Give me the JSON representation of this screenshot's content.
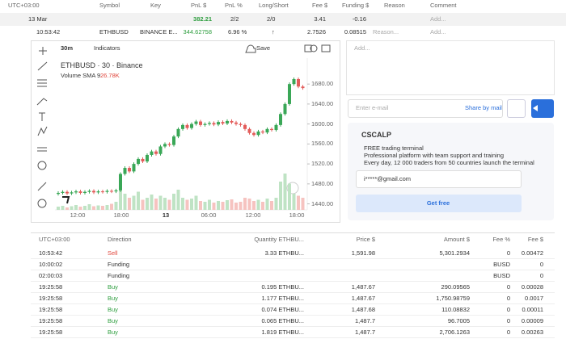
{
  "top_table": {
    "columns": [
      "UTC+03:00",
      "Symbol",
      "Key",
      "PnL $",
      "PnL %",
      "Long/Short",
      "Fee $",
      "Funding $",
      "Reason",
      "Comment"
    ],
    "summary": [
      "13 Mar",
      "382.21",
      "2/2",
      "2/0",
      "3.41",
      "-0.16",
      "Add..."
    ],
    "trade": [
      "10:53:42",
      "ETHBUSD",
      "BINANCE E...",
      "344.62758",
      "6.96 %",
      "↑",
      "2.7526",
      "0.08515",
      "Reason...",
      "Add..."
    ]
  },
  "chart": {
    "interval": "30m",
    "indicators": "Indicators",
    "save": "Save",
    "legend": "ETHBUSD · 30 · Binance",
    "volume_label": "Volume SMA 9",
    "volume_value": "26.78K",
    "ylim": [
      1428,
      1732
    ],
    "yticks": [
      {
        "value": 1680,
        "label": "1680.00"
      },
      {
        "value": 1640,
        "label": "1640.00"
      },
      {
        "value": 1600,
        "label": "1600.00"
      },
      {
        "value": 1560,
        "label": "1560.00"
      },
      {
        "value": 1520,
        "label": "1520.00"
      },
      {
        "value": 1480,
        "label": "1480.00"
      },
      {
        "value": 1440,
        "label": "1440.00"
      }
    ],
    "xticks": [
      "12:00",
      "18:00",
      "13",
      "06:00",
      "12:00",
      "18:00"
    ],
    "open": 1460,
    "closes": [
      1462,
      1464,
      1461,
      1463,
      1465,
      1462,
      1464,
      1466,
      1463,
      1465,
      1464,
      1466,
      1465,
      1467,
      1500,
      1512,
      1505,
      1520,
      1530,
      1525,
      1538,
      1545,
      1540,
      1555,
      1560,
      1558,
      1575,
      1590,
      1598,
      1592,
      1600,
      1605,
      1598,
      1600,
      1602,
      1599,
      1604,
      1601,
      1606,
      1603,
      1600,
      1598,
      1590,
      1582,
      1578,
      1585,
      1583,
      1590,
      1588,
      1598,
      1620,
      1640,
      1680,
      1690,
      1675,
      1672
    ],
    "volumes": [
      8,
      10,
      6,
      9,
      12,
      8,
      10,
      14,
      9,
      11,
      10,
      12,
      15,
      20,
      60,
      40,
      30,
      35,
      45,
      25,
      30,
      38,
      28,
      35,
      30,
      25,
      40,
      50,
      30,
      25,
      28,
      35,
      22,
      20,
      25,
      18,
      22,
      20,
      24,
      26,
      18,
      20,
      30,
      28,
      22,
      25,
      20,
      28,
      22,
      30,
      70,
      90,
      65,
      40,
      35,
      30
    ]
  },
  "side_panel": {
    "comment": "Add...",
    "email_placeholder": "Enter e-mail",
    "share": "Share by mail",
    "brand": "CSCALP",
    "bullets": [
      "FREE trading terminal",
      "Professional platform with team support and training",
      "Every day, 12 000 traders from 50 countries launch the terminal"
    ],
    "email": "i*****@gmail.com",
    "cta": "Get free"
  },
  "trades": {
    "columns": [
      "UTC+03:00",
      "Direction",
      "Quantity ETHBU...",
      "Price $",
      "Amount $",
      "Fee %",
      "Fee $"
    ],
    "rows": [
      [
        "10:53:42",
        "Sell",
        "3.33 ETHBU...",
        "1,591.98",
        "5,301.2934",
        "0",
        "0.00472"
      ],
      [
        "10:00:02",
        "Funding",
        null,
        null,
        null,
        "BUSD",
        "0"
      ],
      [
        "02:00:03",
        "Funding",
        null,
        null,
        null,
        "BUSD",
        "0"
      ],
      [
        "19:25:58",
        "Buy",
        "0.195 ETHBU...",
        "1,487.67",
        "290.09565",
        "0",
        "0.00028"
      ],
      [
        "19:25:58",
        "Buy",
        "1.177 ETHBU...",
        "1,487.67",
        "1,750.98759",
        "0",
        "0.0017"
      ],
      [
        "19:25:58",
        "Buy",
        "0.074 ETHBU...",
        "1,487.68",
        "110.08832",
        "0",
        "0.00011"
      ],
      [
        "19:25:58",
        "Buy",
        "0.065 ETHBU...",
        "1,487.7",
        "96.7005",
        "0",
        "0.00009"
      ],
      [
        "19:25:58",
        "Buy",
        "1.819 ETHBU...",
        "1,487.7",
        "2,706.1263",
        "0",
        "0.00263"
      ]
    ]
  }
}
